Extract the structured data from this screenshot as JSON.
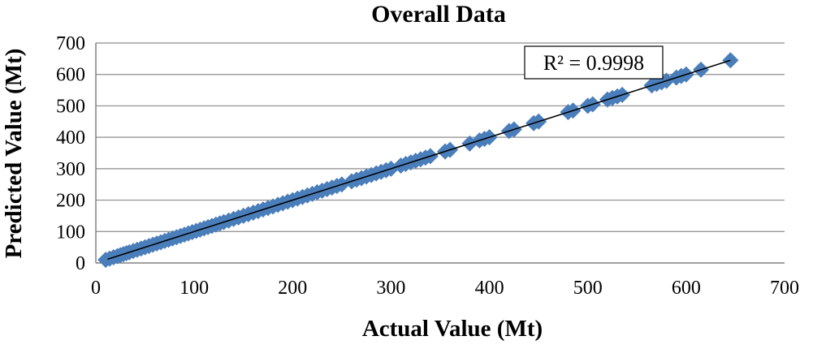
{
  "chart_data": {
    "type": "scatter",
    "title": "Overall Data",
    "xlabel": "Actual Value (Mt)",
    "ylabel": "Predicted Value (Mt)",
    "xlim": [
      0,
      700
    ],
    "ylim": [
      0,
      700
    ],
    "xticks": [
      "0",
      "100",
      "200",
      "300",
      "400",
      "500",
      "600",
      "700"
    ],
    "yticks": [
      "0",
      "100",
      "200",
      "300",
      "400",
      "500",
      "600",
      "700"
    ],
    "grid": "horizontal",
    "marker": "diamond",
    "marker_color": "#4a7ebb",
    "trendline": {
      "type": "linear",
      "x": [
        12,
        645
      ],
      "y": [
        12,
        645
      ],
      "color": "#000000"
    },
    "annotation": "R² = 0.9998",
    "x": [
      10,
      14,
      18,
      22,
      25,
      28,
      31,
      34,
      38,
      42,
      46,
      50,
      54,
      58,
      62,
      66,
      70,
      74,
      78,
      82,
      86,
      90,
      94,
      98,
      102,
      106,
      110,
      114,
      118,
      122,
      126,
      130,
      135,
      140,
      145,
      150,
      155,
      160,
      165,
      170,
      175,
      180,
      185,
      190,
      195,
      200,
      205,
      210,
      215,
      220,
      225,
      230,
      235,
      240,
      245,
      250,
      260,
      265,
      270,
      275,
      280,
      285,
      290,
      295,
      300,
      310,
      315,
      320,
      325,
      330,
      335,
      340,
      355,
      360,
      380,
      390,
      395,
      400,
      420,
      425,
      445,
      450,
      480,
      485,
      500,
      505,
      520,
      525,
      530,
      535,
      565,
      570,
      575,
      580,
      590,
      595,
      600,
      615,
      645
    ],
    "y": [
      10,
      14,
      18,
      22,
      25,
      28,
      31,
      34,
      38,
      42,
      46,
      50,
      54,
      58,
      62,
      66,
      70,
      74,
      78,
      82,
      86,
      90,
      94,
      98,
      102,
      106,
      110,
      114,
      118,
      122,
      126,
      130,
      135,
      140,
      145,
      150,
      155,
      160,
      165,
      170,
      175,
      180,
      185,
      190,
      195,
      200,
      205,
      210,
      215,
      220,
      225,
      230,
      235,
      240,
      245,
      250,
      260,
      265,
      270,
      275,
      280,
      285,
      290,
      295,
      300,
      310,
      315,
      320,
      325,
      330,
      335,
      340,
      355,
      360,
      380,
      390,
      395,
      400,
      420,
      425,
      445,
      450,
      480,
      485,
      500,
      505,
      520,
      525,
      530,
      535,
      565,
      570,
      575,
      580,
      590,
      595,
      600,
      615,
      645
    ]
  }
}
